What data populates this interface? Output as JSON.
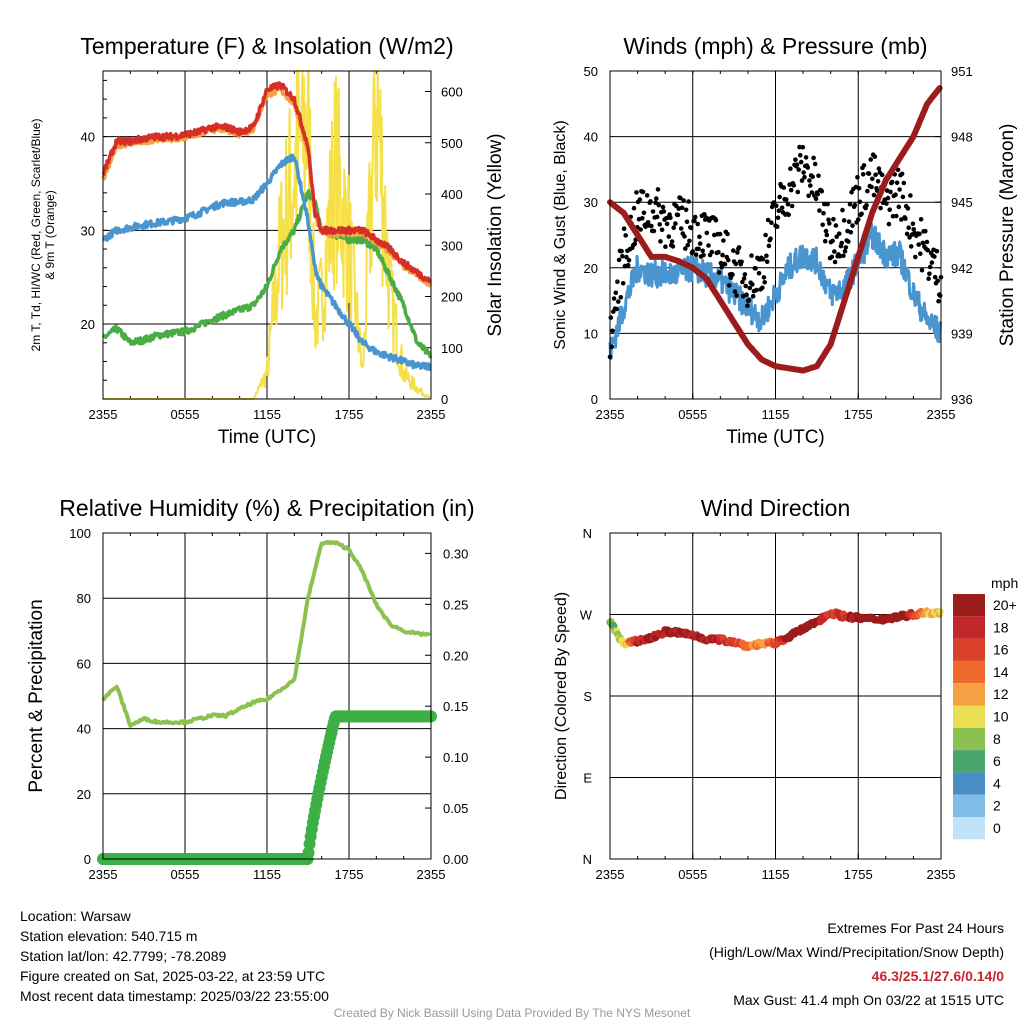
{
  "info": {
    "location": "Location: Warsaw",
    "elevation": "Station elevation: 540.715 m",
    "latlon": "Station lat/lon: 42.7799; -78.2089",
    "created": "Figure created on Sat, 2025-03-22, at 23:59 UTC",
    "recent": "Most recent data timestamp: 2025/03/22 23:55:00"
  },
  "extremes": {
    "title": "Extremes For Past 24 Hours",
    "subtitle": "(High/Low/Max Wind/Precipitation/Snow Depth)",
    "values": "46.3/25.1/27.6/0.14/0",
    "gust": "Max Gust: 41.4 mph On 03/22 at 1515 UTC"
  },
  "credit": "Created By Nick Bassill Using Data Provided By The NYS Mesonet",
  "chart_data": [
    {
      "type": "line",
      "title": "Temperature (F) & Insolation (W/m2)",
      "xlabel": "Time (UTC)",
      "ylabel": "2m T, Td, HI/WC (Red, Green, Scarlet/Blue) & 9m T (Orange)",
      "y2label": "Solar Insolation (Yellow)",
      "x_ticks": [
        "2355",
        "0555",
        "1155",
        "1755",
        "2355"
      ],
      "ylim": [
        12,
        47
      ],
      "y_ticks": [
        20,
        30,
        40
      ],
      "y2lim": [
        0,
        640
      ],
      "y2_ticks": [
        0,
        100,
        200,
        300,
        400,
        500,
        600
      ],
      "hours": [
        0,
        1,
        2,
        3,
        4,
        5,
        6,
        7,
        8,
        9,
        10,
        11,
        12,
        13,
        14,
        15,
        15.5,
        16,
        17,
        18,
        19,
        20,
        21,
        22,
        23,
        24
      ],
      "series": [
        {
          "color": "#d62f27",
          "axis": "left",
          "values": [
            36,
            39.5,
            39.5,
            39.8,
            40,
            40,
            40.2,
            40.5,
            41,
            41,
            40.5,
            41,
            45,
            45.5,
            44,
            39,
            32,
            30,
            30,
            30,
            30,
            29,
            28,
            26.5,
            25.5,
            24.5
          ]
        },
        {
          "color": "#f5a143",
          "axis": "left",
          "values": [
            35.5,
            39,
            39.3,
            39.5,
            39.8,
            39.8,
            40,
            40.3,
            40.8,
            40.8,
            40.3,
            40.8,
            44.5,
            45,
            43.5,
            38.5,
            31.5,
            29.8,
            29.7,
            29.7,
            29.7,
            28.7,
            27.7,
            26.2,
            25.2,
            24.3
          ]
        },
        {
          "color": "#4895d0",
          "axis": "left",
          "values": [
            29,
            30,
            30.3,
            30.6,
            30.8,
            31,
            31.3,
            31.8,
            32.5,
            33,
            33,
            33.3,
            35,
            37,
            38,
            31,
            26,
            24,
            22,
            20,
            18,
            17,
            16.5,
            16,
            15.5,
            15.5
          ]
        },
        {
          "color": "#4aac44",
          "axis": "left",
          "values": [
            18.5,
            19.5,
            18,
            18.3,
            18.8,
            19,
            19.2,
            19.8,
            20.5,
            21,
            21.5,
            22,
            24,
            28,
            30,
            34,
            33,
            30,
            29.5,
            29,
            29,
            28,
            25,
            22,
            18,
            16.5
          ]
        },
        {
          "color": "#f5e04a",
          "axis": "right",
          "values": [
            0,
            0,
            0,
            0,
            0,
            0,
            0,
            0,
            0,
            0,
            0,
            0,
            50,
            300,
            450,
            550,
            150,
            200,
            450,
            300,
            50,
            600,
            200,
            50,
            20,
            0
          ]
        }
      ]
    },
    {
      "type": "line",
      "title": "Winds (mph) & Pressure (mb)",
      "xlabel": "Time (UTC)",
      "ylabel": "Sonic Wind & Gust (Blue, Black)",
      "y2label": "Station Pressure (Maroon)",
      "x_ticks": [
        "2355",
        "0555",
        "1155",
        "1755",
        "2355"
      ],
      "ylim": [
        0,
        50
      ],
      "y_ticks": [
        0,
        10,
        20,
        30,
        40,
        50
      ],
      "y2lim": [
        936,
        951
      ],
      "y2_ticks": [
        936,
        939,
        942,
        945,
        948,
        951
      ],
      "hours": [
        0,
        1,
        2,
        3,
        4,
        5,
        6,
        7,
        8,
        9,
        10,
        11,
        12,
        13,
        14,
        15,
        16,
        17,
        18,
        19,
        20,
        21,
        22,
        23,
        24
      ],
      "series": [
        {
          "name": "wind",
          "color": "#4895d0",
          "values": [
            7,
            14,
            20,
            19,
            19,
            19,
            20,
            19,
            18,
            16,
            14,
            12,
            16,
            20,
            22,
            21,
            16,
            17,
            21,
            25,
            22,
            22,
            16,
            12,
            10
          ]
        },
        {
          "name": "gust",
          "color": "#000000",
          "values": [
            10,
            22,
            28,
            29,
            27,
            27,
            26,
            25,
            23,
            20,
            18,
            20,
            28,
            32,
            36,
            32,
            24,
            26,
            31,
            34,
            30,
            32,
            26,
            22,
            18
          ]
        },
        {
          "name": "pressure",
          "color": "#9c1b1b",
          "values": [
            945,
            944.5,
            943.5,
            942.5,
            942.5,
            942.3,
            942,
            941.5,
            940.5,
            939.5,
            938.5,
            937.8,
            937.5,
            937.4,
            937.3,
            937.5,
            938.5,
            940.5,
            942.5,
            944.5,
            946,
            947,
            948,
            949.5,
            950.3
          ]
        }
      ]
    },
    {
      "type": "line",
      "title": "Relative Humidity (%) & Precipitation (in)",
      "ylabel": "Percent & Precipitation",
      "x_ticks": [
        "2355",
        "0555",
        "1155",
        "1755",
        "2355"
      ],
      "ylim": [
        0,
        100
      ],
      "y_ticks": [
        0,
        20,
        40,
        60,
        80,
        100
      ],
      "y2lim": [
        0,
        0.32
      ],
      "y2_ticks": [
        "0.00",
        "0.05",
        "0.10",
        "0.15",
        "0.20",
        "0.25",
        "0.30"
      ],
      "hours": [
        0,
        1,
        2,
        3,
        4,
        5,
        6,
        7,
        8,
        9,
        10,
        11,
        12,
        13,
        14,
        15,
        16,
        17,
        18,
        19,
        20,
        21,
        22,
        23,
        24
      ],
      "series": [
        {
          "name": "rh",
          "color": "#8cc152",
          "values": [
            49,
            53,
            41,
            43,
            42,
            42,
            42,
            43,
            44,
            44,
            46,
            48,
            49,
            52,
            55,
            80,
            97,
            97,
            95,
            88,
            78,
            72,
            70,
            69,
            69
          ]
        },
        {
          "name": "precip",
          "color": "#3cb045",
          "values": [
            0,
            0,
            0,
            0,
            0,
            0,
            0,
            0,
            0,
            0,
            0,
            0,
            0,
            0,
            0,
            0,
            0.1,
            0.14,
            0.14,
            0.14,
            0.14,
            0.14,
            0.14,
            0.14,
            0.14
          ]
        }
      ]
    },
    {
      "type": "scatter",
      "title": "Wind Direction",
      "ylabel": "Direction (Colored By Speed)",
      "x_ticks": [
        "2355",
        "0555",
        "1155",
        "1755",
        "2355"
      ],
      "y_ticks": [
        "N",
        "E",
        "S",
        "W",
        "N"
      ],
      "ylim": [
        0,
        360
      ],
      "legend_title": "mph",
      "legend_labels": [
        "20+",
        "18",
        "16",
        "14",
        "12",
        "10",
        "8",
        "6",
        "4",
        "2",
        "0"
      ],
      "legend_colors": [
        "#9c1b1b",
        "#c3272b",
        "#d9412b",
        "#ef6a2e",
        "#f5a143",
        "#ebde52",
        "#8cc152",
        "#4aa56b",
        "#4a8ec8",
        "#7fbde6",
        "#bfe4f7"
      ],
      "hours": [
        0,
        1,
        2,
        3,
        4,
        5,
        6,
        7,
        8,
        9,
        10,
        11,
        12,
        13,
        14,
        15,
        16,
        17,
        18,
        19,
        20,
        21,
        22,
        23,
        24
      ],
      "direction": [
        262,
        237,
        241,
        244,
        251,
        250,
        247,
        243,
        242,
        240,
        235,
        238,
        238,
        246,
        254,
        262,
        272,
        268,
        266,
        265,
        265,
        268,
        270,
        272,
        273
      ],
      "speed": [
        6,
        10,
        18,
        19,
        20,
        20,
        19,
        19,
        18,
        16,
        14,
        12,
        16,
        20,
        22,
        21,
        16,
        17,
        20,
        24,
        22,
        22,
        16,
        12,
        10
      ]
    }
  ]
}
